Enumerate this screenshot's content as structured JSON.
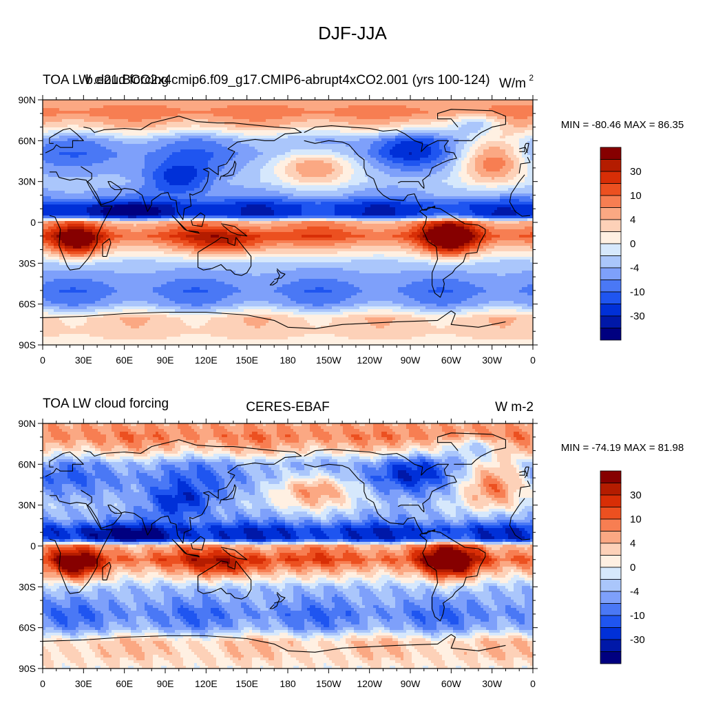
{
  "figure_title": "DJF-JJA",
  "colors": {
    "levels": [
      "#000080",
      "#0018a8",
      "#0030d8",
      "#1f55f0",
      "#4a78f5",
      "#7ea0fa",
      "#aac6fb",
      "#d6e8fc",
      "#fff0e2",
      "#fdd1b8",
      "#fba883",
      "#f77e52",
      "#ec5020",
      "#d82e06",
      "#b41c00",
      "#860000"
    ],
    "coast": "#000000",
    "frame": "#000000"
  },
  "chart_data": [
    {
      "type": "heatmap",
      "panel": "top",
      "title_left": "TOA LW cloud forcing",
      "title_center": "b.e21.BCO2x4cmip6.f09_g17.CMIP6-abrupt4xCO2.001 (yrs 100-124)",
      "title_right": "W/m",
      "title_right_sup": "2",
      "stats": "MIN = -80.46 MAX =  86.35",
      "min": -80.46,
      "max": 86.35,
      "xlabel": "",
      "ylabel": "",
      "lon_ticks": [
        "0",
        "30E",
        "60E",
        "90E",
        "120E",
        "150E",
        "180",
        "150W",
        "120W",
        "90W",
        "60W",
        "30W",
        "0"
      ],
      "lat_ticks": [
        "90N",
        "60N",
        "30N",
        "0",
        "30S",
        "60S",
        "90S"
      ],
      "colorbar_labels": [
        "30",
        "10",
        "4",
        "0",
        "-4",
        "-10",
        "-30"
      ]
    },
    {
      "type": "heatmap",
      "panel": "bottom",
      "title_left": "TOA LW cloud forcing",
      "title_center": "CERES-EBAF",
      "title_right": "W m-2",
      "stats": "MIN = -74.19 MAX =  81.98",
      "min": -74.19,
      "max": 81.98,
      "xlabel": "",
      "ylabel": "",
      "lon_ticks": [
        "0",
        "30E",
        "60E",
        "90E",
        "120E",
        "150E",
        "180",
        "150W",
        "120W",
        "90W",
        "60W",
        "30W",
        "0"
      ],
      "lat_ticks": [
        "90N",
        "60N",
        "30N",
        "0",
        "30S",
        "60S",
        "90S"
      ],
      "colorbar_labels": [
        "30",
        "10",
        "4",
        "0",
        "-4",
        "-10",
        "-30"
      ]
    }
  ]
}
